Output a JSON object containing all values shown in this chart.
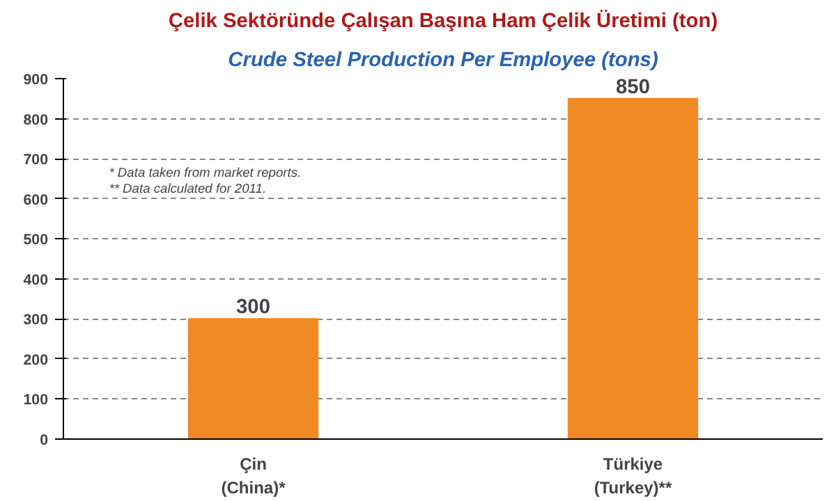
{
  "chart_data": {
    "type": "bar",
    "title": "Çelik Sektöründe Çalışan Başına Ham Çelik Üretimi (ton)",
    "subtitle": "Crude Steel Production Per Employee (tons)",
    "categories": [
      "Çin\n(China)*",
      "Türkiye\n(Turkey)**"
    ],
    "values": [
      300,
      850
    ],
    "color": "#f08a24",
    "ylim": [
      0,
      900
    ],
    "yticks": [
      0,
      100,
      200,
      300,
      400,
      500,
      600,
      700,
      800,
      900
    ],
    "grid": "y",
    "data_labels": true,
    "annotations": [
      "* Data taken from market reports.",
      "** Data calculated for 2011."
    ]
  }
}
